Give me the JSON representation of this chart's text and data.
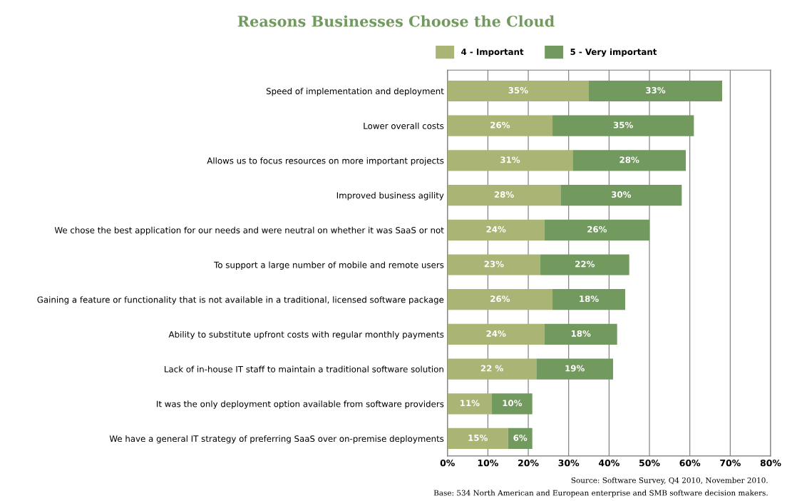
{
  "chart_data": {
    "type": "bar",
    "orientation": "horizontal",
    "stacked": true,
    "title": "Reasons Businesses Choose the Cloud",
    "categories": [
      "Speed of implementation and deployment",
      "Lower overall costs",
      "Allows us to focus resources on more important projects",
      "Improved business agility",
      "We chose the best application for our needs and were neutral on whether it was SaaS or not",
      "To support a large number of mobile and remote users",
      "Gaining a feature or functionality that is not available in a traditional, licensed software package",
      "Ability to substitute upfront costs with regular monthly payments",
      "Lack of in-house IT staff to maintain a traditional software solution",
      "It was the only deployment option available from software providers",
      "We have a general IT strategy of preferring SaaS over on-premise deployments"
    ],
    "series": [
      {
        "name": "4 - Important",
        "color": "#aab474",
        "values": [
          35,
          26,
          31,
          28,
          24,
          23,
          26,
          24,
          22,
          11,
          15
        ],
        "value_labels": [
          "35%",
          "26%",
          "31%",
          "28%",
          "24%",
          "23%",
          "26%",
          "24%",
          "22 %",
          "11%",
          "15%"
        ]
      },
      {
        "name": "5 - Very important",
        "color": "#729a5e",
        "values": [
          33,
          35,
          28,
          30,
          26,
          22,
          18,
          18,
          19,
          10,
          6
        ],
        "value_labels": [
          "33%",
          "35%",
          "28%",
          "30%",
          "26%",
          "22%",
          "18%",
          "18%",
          "19%",
          "10%",
          "6%"
        ]
      }
    ],
    "xlim": [
      0,
      80
    ],
    "xticks": [
      {
        "value": 0,
        "label": "0%"
      },
      {
        "value": 10,
        "label": "10%"
      },
      {
        "value": 20,
        "label": "20%"
      },
      {
        "value": 30,
        "label": "30%"
      },
      {
        "value": 40,
        "label": "40%"
      },
      {
        "value": 50,
        "label": "50%"
      },
      {
        "value": 60,
        "label": "60%"
      },
      {
        "value": 70,
        "label": "70%"
      },
      {
        "value": 80,
        "label": "80%"
      }
    ],
    "grid": "x",
    "legend": "top",
    "annotations": [
      "Source: Software Survey, Q4 2010, November 2010.",
      "Base: 534 North American and European enterprise and SMB software decision makers."
    ]
  }
}
